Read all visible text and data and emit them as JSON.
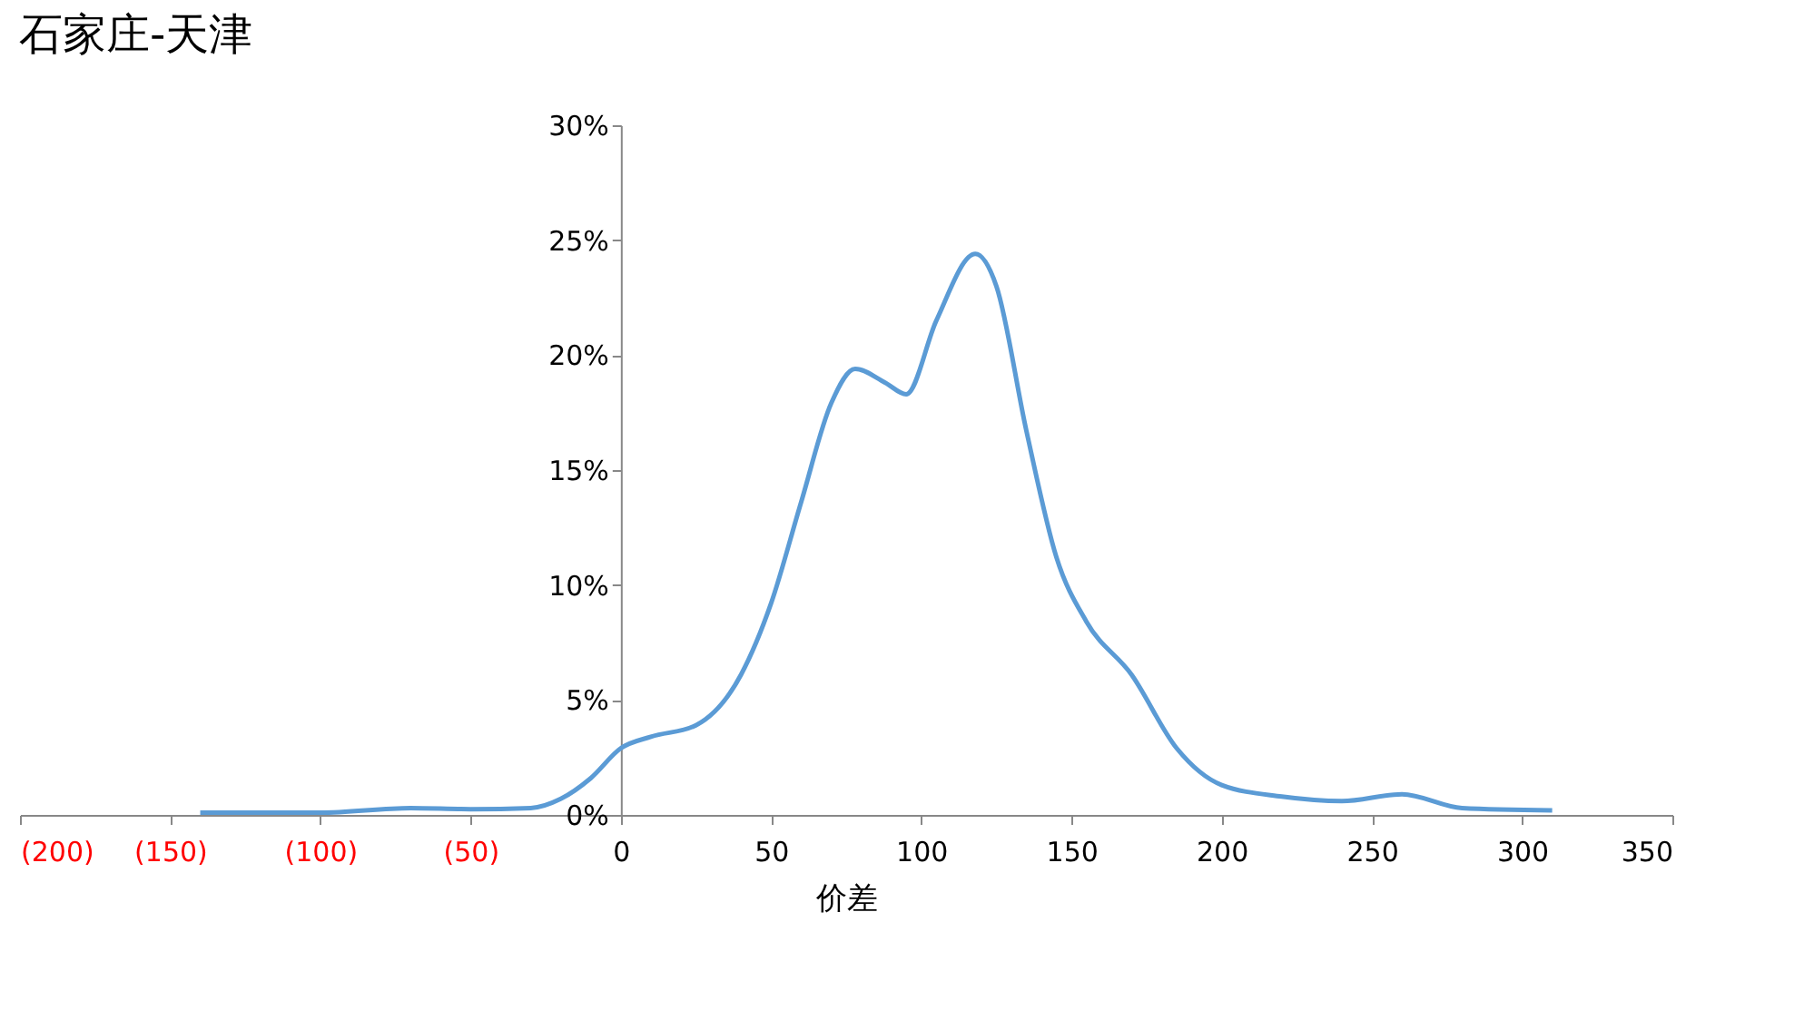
{
  "chart_data": {
    "type": "line",
    "title": "石家庄-天津",
    "xlabel": "价差",
    "x": [
      -140,
      -100,
      -70,
      -50,
      -30,
      -20,
      -10,
      0,
      10,
      25,
      40,
      50,
      60,
      70,
      78,
      88,
      95,
      105,
      118,
      125,
      135,
      145,
      155,
      170,
      185,
      200,
      220,
      240,
      260,
      280,
      310
    ],
    "series": [
      {
        "color": "#5b9bd5",
        "values": [
          0.1,
          0.1,
          0.3,
          0.25,
          0.3,
          0.7,
          1.6,
          2.9,
          3.4,
          3.9,
          6.1,
          9.2,
          13.6,
          17.9,
          19.4,
          18.8,
          18.3,
          21.5,
          24.4,
          23,
          16.7,
          11.2,
          8.4,
          6.1,
          2.9,
          1.3,
          0.8,
          0.6,
          0.9,
          0.3,
          0.2
        ]
      }
    ],
    "xlim": [
      -200,
      350
    ],
    "xticks": [
      {
        "value": -200,
        "label": "(200)"
      },
      {
        "value": -150,
        "label": "(150)"
      },
      {
        "value": -100,
        "label": "(100)"
      },
      {
        "value": -50,
        "label": "(50)"
      },
      0,
      50,
      100,
      150,
      200,
      250,
      300,
      350
    ],
    "ylim": [
      0,
      30
    ],
    "yticks": [
      {
        "value": 0,
        "label": "0%"
      },
      {
        "value": 5,
        "label": "5%"
      },
      {
        "value": 10,
        "label": "10%"
      },
      {
        "value": 15,
        "label": "15%"
      },
      {
        "value": 20,
        "label": "20%"
      },
      {
        "value": 25,
        "label": "25%"
      },
      {
        "value": 30,
        "label": "30%"
      }
    ],
    "grid": false,
    "marker": "none",
    "line_style": "solid"
  }
}
